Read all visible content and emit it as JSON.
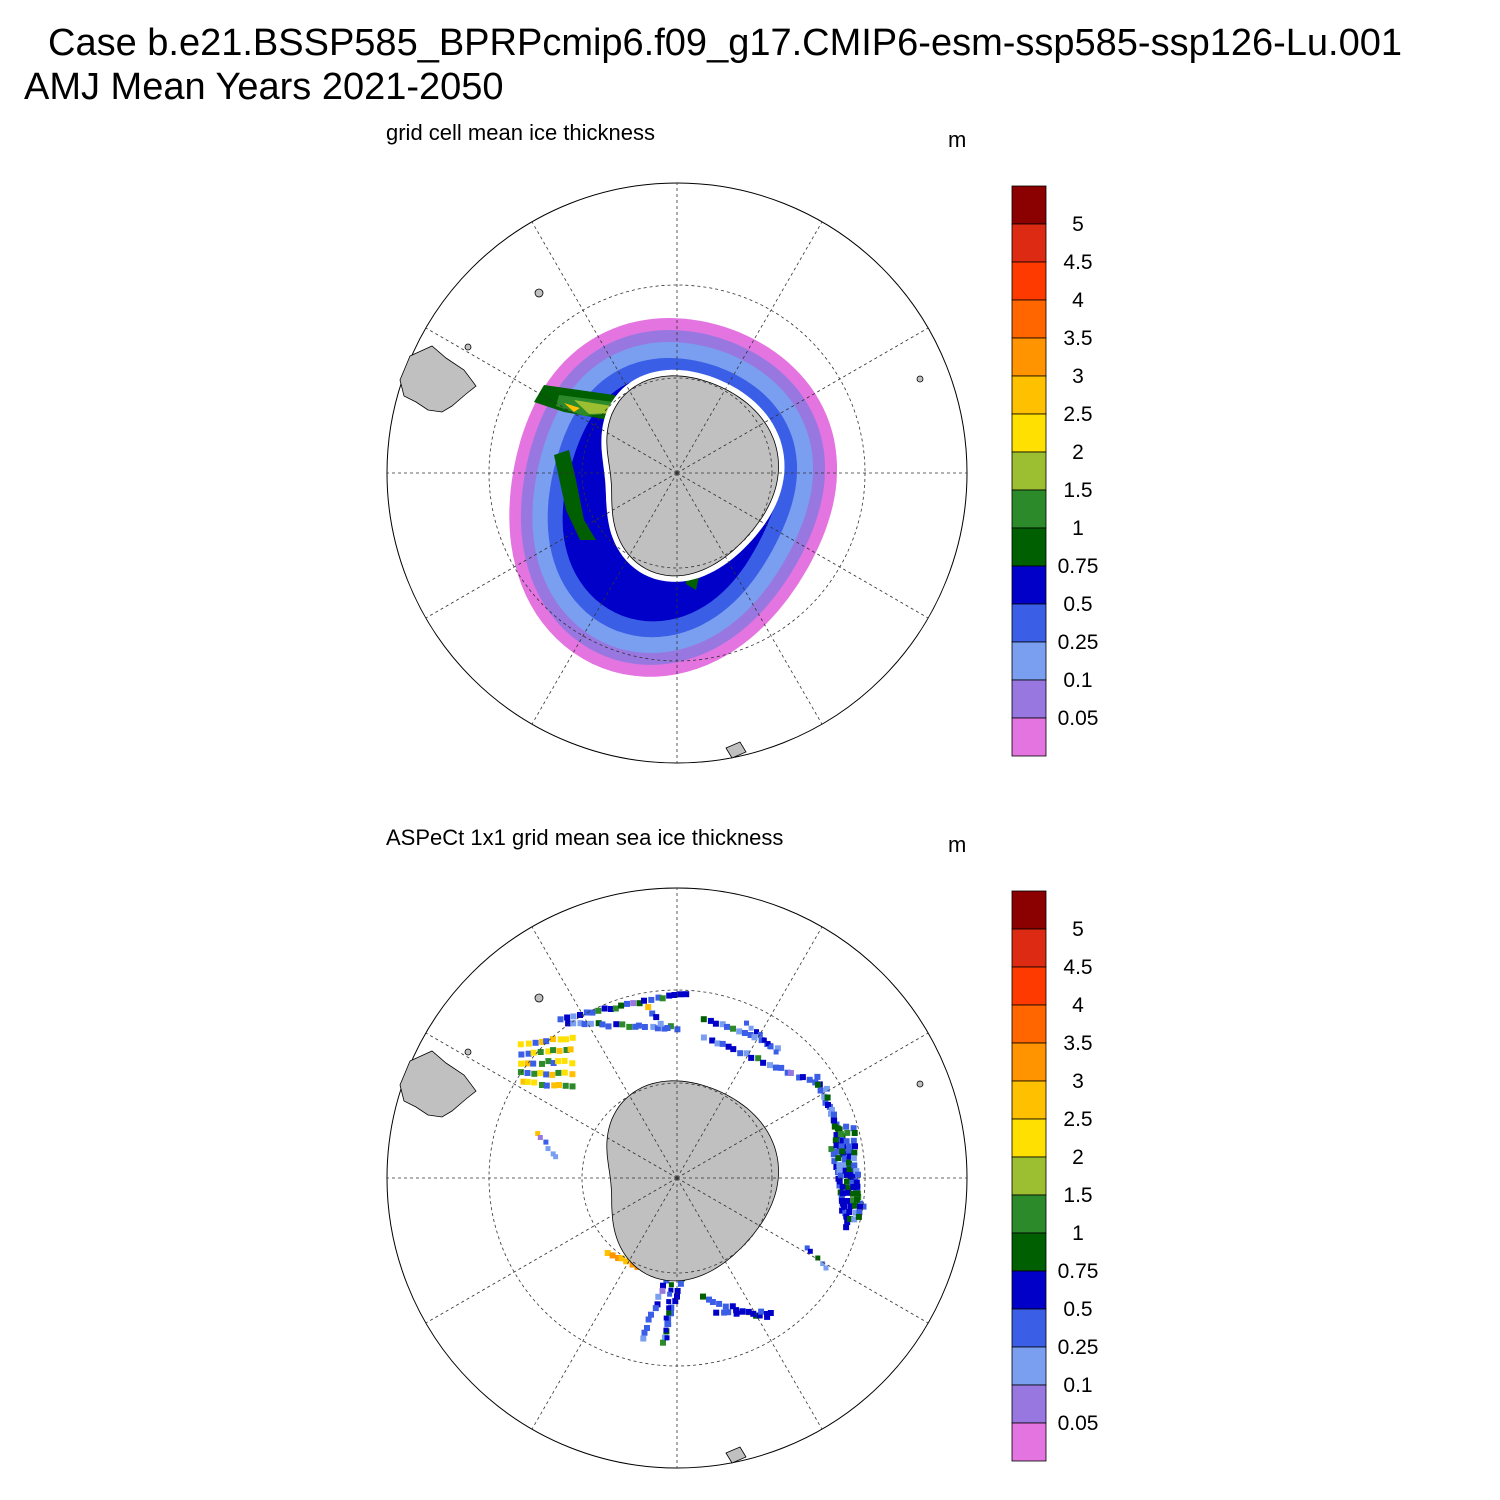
{
  "figure": {
    "title_line1": "Case b.e21.BSSP585_BPRPcmip6.f09_g17.CMIP6-esm-ssp585-ssp126-Lu.001",
    "title_line2": "AMJ Mean   Years 2021-2050"
  },
  "panels": [
    {
      "title": "grid cell mean ice thickness",
      "units": "m",
      "kind": "model-field"
    },
    {
      "title": "ASPeCt 1x1 grid mean sea ice thickness",
      "units": "m",
      "kind": "observation-tracks"
    }
  ],
  "colorbar": {
    "labels": [
      "5",
      "4.5",
      "4",
      "3.5",
      "3",
      "2.5",
      "2",
      "1.5",
      "1",
      "0.75",
      "0.5",
      "0.25",
      "0.1",
      "0.05"
    ],
    "colors_top_to_bottom": [
      "#8b0000",
      "#dd2a12",
      "#ff3a00",
      "#ff6600",
      "#ff9300",
      "#ffc000",
      "#ffe000",
      "#9bbf30",
      "#2c8a2a",
      "#005f00",
      "#0000c8",
      "#3a5fe6",
      "#7a9ff0",
      "#9878e0",
      "#e474e0"
    ]
  },
  "chart_data": [
    {
      "type": "heatmap",
      "title": "grid cell mean ice thickness",
      "units": "m",
      "projection": "south polar stereographic",
      "levels": [
        0.05,
        0.1,
        0.25,
        0.5,
        0.75,
        1,
        1.5,
        2,
        2.5,
        3,
        3.5,
        4,
        4.5,
        5
      ],
      "fields": "pack ice ring around Antarctica; thickest (1-3 m) in Weddell Sea and Bellingshausen/Ross coasts; thin (<0.1 m) at outer edge"
    },
    {
      "type": "heatmap",
      "title": "ASPeCt 1x1 grid mean sea ice thickness",
      "units": "m",
      "projection": "south polar stereographic",
      "levels": [
        0.05,
        0.1,
        0.25,
        0.5,
        0.75,
        1,
        1.5,
        2,
        2.5,
        3,
        3.5,
        4,
        4.5,
        5
      ],
      "fields": "sparse ship-track observations, mostly 0.1-1 m with a few 2-3 m cells near the Antarctic Peninsula"
    }
  ]
}
